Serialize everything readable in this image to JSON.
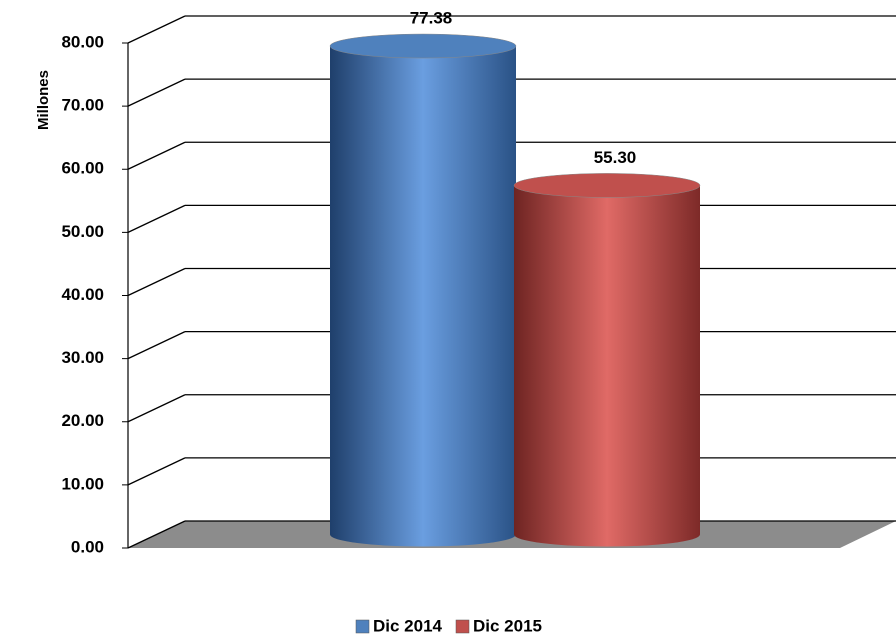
{
  "chart_data": {
    "type": "cylinder-bar",
    "y_label": "Millones",
    "categories": [
      null
    ],
    "series": [
      {
        "name": "Dic 2014",
        "color": "#4f81bd",
        "values": [
          77.38
        ]
      },
      {
        "name": "Dic 2015",
        "color": "#c0504d",
        "values": [
          55.3
        ],
        "value_labels": [
          "55.30"
        ]
      }
    ],
    "ylim": [
      0,
      80
    ],
    "yticks": [
      {
        "value": 0,
        "label": "0.00"
      },
      {
        "value": 10,
        "label": "10.00"
      },
      {
        "value": 20,
        "label": "20.00"
      },
      {
        "value": 30,
        "label": "30.00"
      },
      {
        "value": 40,
        "label": "40.00"
      },
      {
        "value": 50,
        "label": "50.00"
      },
      {
        "value": 60,
        "label": "60.00"
      },
      {
        "value": 70,
        "label": "70.00"
      },
      {
        "value": 80,
        "label": "80.00"
      }
    ],
    "grid": true,
    "legend": "bottom"
  }
}
